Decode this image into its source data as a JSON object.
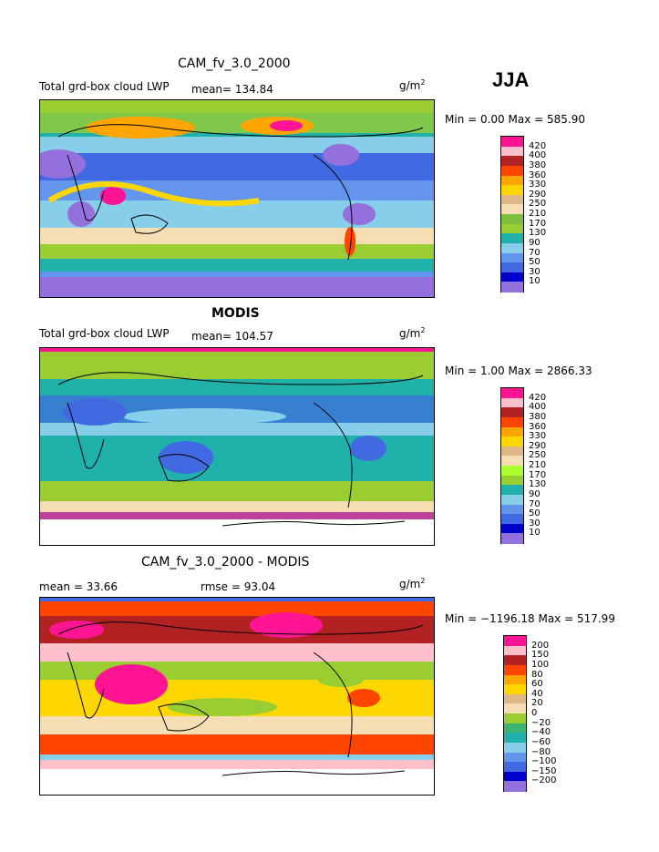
{
  "season": "JJA",
  "panels": [
    {
      "title": "CAM_fv_3.0_2000",
      "left_label": "Total grd-box cloud LWP",
      "mean_label": "mean= 134.84",
      "units": "g/m",
      "units_exp": "2",
      "minmax": "Min =    0.00 Max = 585.90",
      "colorbar_labels": [
        "420",
        "400",
        "380",
        "360",
        "330",
        "290",
        "250",
        "210",
        "170",
        "130",
        "90",
        "70",
        "50",
        "30",
        "10"
      ]
    },
    {
      "title": "MODIS",
      "left_label": "Total grd-box cloud LWP",
      "mean_label": "mean= 104.57",
      "units": "g/m",
      "units_exp": "2",
      "minmax": "Min =    1.00 Max = 2866.33",
      "colorbar_labels": [
        "420",
        "400",
        "380",
        "360",
        "330",
        "290",
        "250",
        "210",
        "170",
        "130",
        "90",
        "70",
        "50",
        "30",
        "10"
      ]
    },
    {
      "title": "CAM_fv_3.0_2000 - MODIS",
      "left_label": "mean =   33.66",
      "mean_label": "rmse =   93.04",
      "units": "g/m",
      "units_exp": "2",
      "minmax": "Min = −1196.18 Max = 517.99",
      "colorbar_labels": [
        "200",
        "150",
        "100",
        "80",
        "60",
        "40",
        "20",
        "0",
        "−20",
        "−40",
        "−60",
        "−80",
        "−100",
        "−150",
        "−200"
      ]
    }
  ],
  "chart_data": [
    {
      "type": "heatmap",
      "title": "CAM_fv_3.0_2000",
      "subtitle": "Total grd-box cloud LWP",
      "mean": 134.84,
      "min": 0.0,
      "max": 585.9,
      "units": "g/m2",
      "levels": [
        10,
        30,
        50,
        70,
        90,
        130,
        170,
        210,
        250,
        290,
        330,
        360,
        380,
        400,
        420
      ],
      "level_colors": [
        "#9370db",
        "#0000cd",
        "#4169e1",
        "#6495ed",
        "#87ceeb",
        "#20b2aa",
        "#9acd32",
        "#7fbf3f",
        "#f5deb3",
        "#deb887",
        "#ffd700",
        "#ffa500",
        "#ff4500",
        "#b22222",
        "#ffc0cb",
        "#ff1493"
      ]
    },
    {
      "type": "heatmap",
      "title": "MODIS",
      "subtitle": "Total grd-box cloud LWP",
      "mean": 104.57,
      "min": 1.0,
      "max": 2866.33,
      "units": "g/m2",
      "levels": [
        10,
        30,
        50,
        70,
        90,
        130,
        170,
        210,
        250,
        290,
        330,
        360,
        380,
        400,
        420
      ],
      "level_colors": [
        "#9370db",
        "#0000cd",
        "#4169e1",
        "#6495ed",
        "#87ceeb",
        "#20b2aa",
        "#9acd32",
        "#adff2f",
        "#f5deb3",
        "#deb887",
        "#ffd700",
        "#ffa500",
        "#ff4500",
        "#b22222",
        "#ffc0cb",
        "#ff1493"
      ]
    },
    {
      "type": "heatmap",
      "title": "CAM_fv_3.0_2000 - MODIS",
      "mean": 33.66,
      "rmse": 93.04,
      "min": -1196.18,
      "max": 517.99,
      "units": "g/m2",
      "levels": [
        -200,
        -150,
        -100,
        -80,
        -60,
        -40,
        -20,
        0,
        20,
        40,
        60,
        80,
        100,
        150,
        200
      ],
      "level_colors": [
        "#9370db",
        "#0000cd",
        "#4169e1",
        "#6495ed",
        "#87ceeb",
        "#20b2aa",
        "#3cb371",
        "#9acd32",
        "#f5deb3",
        "#deb887",
        "#ffd700",
        "#ffa500",
        "#ff4500",
        "#b22222",
        "#ffc0cb",
        "#ff1493"
      ]
    }
  ]
}
